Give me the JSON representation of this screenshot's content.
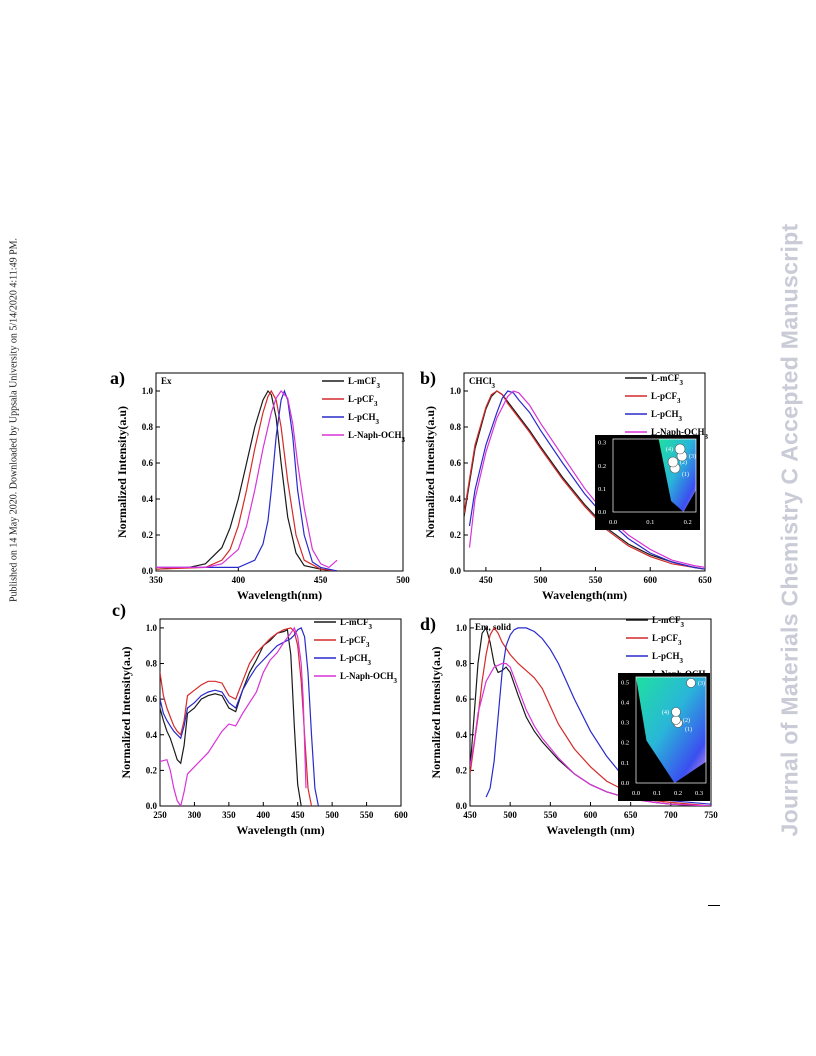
{
  "sidebar_left": "Published on 14 May 2020. Downloaded by Uppsala University on 5/14/2020 4:11:49 PM.",
  "sidebar_right": "Journal of Materials Chemistry C Accepted Manuscript",
  "colors": {
    "L-mCF3": "#1a1a1a",
    "L-pCF3": "#d42a2a",
    "L-pCH3": "#2a2acc",
    "L-Naph-OCH3": "#d833d8"
  },
  "chart_data": [
    {
      "panel": "a)",
      "type": "line",
      "annotation": "Ex",
      "xlabel": "Wavelength(nm)",
      "ylabel": "Normalized Intensity(a.u)",
      "xlim": [
        350,
        500
      ],
      "ylim": [
        0,
        1.1
      ],
      "xticks": [
        350,
        400,
        450,
        500
      ],
      "yticks": [
        0.0,
        0.2,
        0.4,
        0.6,
        0.8,
        1.0
      ],
      "legend": [
        [
          "L-mCF",
          "3"
        ],
        [
          "L-pCF",
          "3"
        ],
        [
          "L-pCH",
          "3"
        ],
        [
          "L-Naph-OCH",
          "3"
        ]
      ],
      "legend_position": "top-right",
      "series": [
        {
          "name": "L-mCF3",
          "x": [
            350,
            370,
            380,
            390,
            395,
            400,
            405,
            410,
            415,
            418,
            420,
            423,
            426,
            430,
            435,
            440,
            450,
            460
          ],
          "y": [
            0.01,
            0.02,
            0.04,
            0.13,
            0.24,
            0.4,
            0.6,
            0.8,
            0.95,
            1.0,
            0.98,
            0.85,
            0.6,
            0.3,
            0.1,
            0.03,
            0.01,
            0.0
          ]
        },
        {
          "name": "L-pCF3",
          "x": [
            350,
            380,
            390,
            395,
            400,
            405,
            410,
            415,
            418,
            420,
            423,
            426,
            430,
            435,
            440,
            450,
            460
          ],
          "y": [
            0.01,
            0.02,
            0.06,
            0.12,
            0.25,
            0.45,
            0.68,
            0.88,
            0.97,
            1.0,
            0.95,
            0.8,
            0.5,
            0.2,
            0.06,
            0.01,
            0.0
          ]
        },
        {
          "name": "L-pCH3",
          "x": [
            350,
            380,
            400,
            410,
            415,
            418,
            420,
            423,
            426,
            428,
            430,
            433,
            436,
            440,
            445,
            450,
            460
          ],
          "y": [
            0.02,
            0.02,
            0.02,
            0.06,
            0.15,
            0.28,
            0.45,
            0.75,
            0.95,
            1.0,
            0.95,
            0.75,
            0.45,
            0.2,
            0.05,
            0.02,
            0.0
          ]
        },
        {
          "name": "L-Naph-OCH3",
          "x": [
            350,
            380,
            390,
            400,
            405,
            410,
            415,
            420,
            423,
            426,
            430,
            433,
            436,
            440,
            445,
            450,
            455,
            460
          ],
          "y": [
            0.02,
            0.02,
            0.04,
            0.12,
            0.25,
            0.45,
            0.68,
            0.88,
            0.96,
            1.0,
            0.96,
            0.82,
            0.6,
            0.35,
            0.12,
            0.04,
            0.02,
            0.06
          ]
        }
      ]
    },
    {
      "panel": "b)",
      "type": "line",
      "annotation": "CHCl",
      "annotation_sub": "3",
      "xlabel": "Wavelength(nm)",
      "ylabel": "Normalized Intensity(a.u)",
      "xlim": [
        430,
        650
      ],
      "ylim": [
        0,
        1.1
      ],
      "xticks": [
        450,
        500,
        550,
        600,
        650
      ],
      "yticks": [
        0.0,
        0.2,
        0.4,
        0.6,
        0.8,
        1.0
      ],
      "legend": [
        [
          "L-mCF",
          "3"
        ],
        [
          "L-pCF",
          "3"
        ],
        [
          "L-pCH",
          "3"
        ],
        [
          "L-Naph-OCH",
          "3"
        ]
      ],
      "legend_position": "top-right",
      "series": [
        {
          "name": "L-mCF3",
          "x": [
            430,
            440,
            450,
            455,
            460,
            465,
            470,
            480,
            490,
            500,
            520,
            540,
            560,
            580,
            600,
            620,
            640,
            650
          ],
          "y": [
            0.3,
            0.68,
            0.9,
            0.97,
            1.0,
            0.98,
            0.94,
            0.86,
            0.78,
            0.69,
            0.52,
            0.37,
            0.24,
            0.15,
            0.09,
            0.05,
            0.02,
            0.01
          ]
        },
        {
          "name": "L-pCF3",
          "x": [
            430,
            440,
            450,
            455,
            460,
            465,
            470,
            480,
            490,
            500,
            520,
            540,
            560,
            580,
            600,
            620,
            640,
            650
          ],
          "y": [
            0.32,
            0.7,
            0.91,
            0.98,
            1.0,
            0.98,
            0.93,
            0.85,
            0.77,
            0.68,
            0.51,
            0.36,
            0.23,
            0.14,
            0.08,
            0.04,
            0.02,
            0.01
          ]
        },
        {
          "name": "L-pCH3",
          "x": [
            435,
            440,
            450,
            460,
            465,
            470,
            475,
            480,
            490,
            500,
            520,
            540,
            560,
            580,
            600,
            620,
            640,
            650
          ],
          "y": [
            0.25,
            0.45,
            0.7,
            0.88,
            0.96,
            1.0,
            0.99,
            0.95,
            0.88,
            0.78,
            0.6,
            0.43,
            0.29,
            0.18,
            0.1,
            0.05,
            0.02,
            0.01
          ]
        },
        {
          "name": "L-Naph-OCH3",
          "x": [
            435,
            440,
            450,
            460,
            470,
            475,
            480,
            490,
            500,
            520,
            540,
            560,
            580,
            600,
            620,
            640,
            650
          ],
          "y": [
            0.13,
            0.4,
            0.66,
            0.85,
            0.97,
            1.0,
            0.99,
            0.92,
            0.82,
            0.64,
            0.46,
            0.31,
            0.2,
            0.12,
            0.06,
            0.03,
            0.02
          ]
        }
      ],
      "inset": {
        "xticks": [
          0.0,
          0.1,
          0.2
        ],
        "yticks": [
          0.0,
          0.1,
          0.2,
          0.3
        ],
        "points": [
          {
            "label": "(1)"
          },
          {
            "label": "(2)"
          },
          {
            "label": "(3)"
          },
          {
            "label": "(4)"
          }
        ]
      }
    },
    {
      "panel": "c)",
      "type": "line",
      "annotation": "",
      "xlabel": "Wavelength (nm)",
      "ylabel": "Normalized Intensity(a.u)",
      "xlim": [
        250,
        600
      ],
      "ylim": [
        0,
        1.05
      ],
      "xticks": [
        250,
        300,
        350,
        400,
        450,
        500,
        550,
        600
      ],
      "yticks": [
        0.0,
        0.2,
        0.4,
        0.6,
        0.8,
        1.0
      ],
      "legend": [
        [
          "L-mCF",
          "3"
        ],
        [
          "L-pCF",
          "3"
        ],
        [
          "L-pCH",
          "3"
        ],
        [
          "L-Naph-OCH",
          "3"
        ]
      ],
      "legend_position": "top-right",
      "series": [
        {
          "name": "L-mCF3",
          "x": [
            250,
            255,
            260,
            265,
            270,
            275,
            280,
            285,
            290,
            300,
            310,
            320,
            330,
            340,
            350,
            360,
            370,
            380,
            390,
            400,
            410,
            420,
            430,
            435,
            440,
            445,
            450,
            455
          ],
          "y": [
            0.55,
            0.48,
            0.42,
            0.38,
            0.32,
            0.26,
            0.24,
            0.34,
            0.52,
            0.55,
            0.6,
            0.62,
            0.63,
            0.62,
            0.55,
            0.53,
            0.65,
            0.75,
            0.82,
            0.9,
            0.93,
            0.97,
            0.98,
            0.99,
            0.85,
            0.45,
            0.12,
            0.0
          ]
        },
        {
          "name": "L-pCF3",
          "x": [
            250,
            255,
            260,
            265,
            270,
            275,
            280,
            285,
            290,
            300,
            310,
            320,
            330,
            340,
            350,
            360,
            370,
            380,
            390,
            400,
            410,
            420,
            430,
            440,
            445,
            450,
            455,
            460,
            465,
            470
          ],
          "y": [
            0.75,
            0.62,
            0.55,
            0.5,
            0.45,
            0.42,
            0.4,
            0.48,
            0.62,
            0.65,
            0.68,
            0.7,
            0.7,
            0.69,
            0.62,
            0.6,
            0.7,
            0.8,
            0.86,
            0.9,
            0.94,
            0.97,
            0.99,
            1.0,
            0.98,
            0.9,
            0.7,
            0.4,
            0.1,
            0.0
          ]
        },
        {
          "name": "L-pCH3",
          "x": [
            250,
            255,
            260,
            265,
            270,
            275,
            280,
            285,
            290,
            300,
            310,
            320,
            330,
            340,
            350,
            360,
            370,
            380,
            390,
            400,
            410,
            420,
            430,
            440,
            445,
            450,
            455,
            460,
            465,
            470,
            475,
            480
          ],
          "y": [
            0.6,
            0.52,
            0.48,
            0.45,
            0.42,
            0.4,
            0.38,
            0.45,
            0.55,
            0.58,
            0.62,
            0.64,
            0.65,
            0.64,
            0.58,
            0.55,
            0.65,
            0.72,
            0.78,
            0.82,
            0.86,
            0.9,
            0.92,
            0.94,
            0.96,
            0.99,
            1.0,
            0.95,
            0.75,
            0.4,
            0.1,
            0.0
          ]
        },
        {
          "name": "L-Naph-OCH3",
          "x": [
            250,
            260,
            265,
            270,
            275,
            280,
            285,
            290,
            300,
            310,
            320,
            330,
            340,
            350,
            360,
            370,
            380,
            390,
            400,
            410,
            420,
            430,
            440,
            445,
            450,
            455,
            458,
            460,
            462
          ],
          "y": [
            0.25,
            0.26,
            0.2,
            0.1,
            0.03,
            0.0,
            0.08,
            0.18,
            0.22,
            0.26,
            0.3,
            0.36,
            0.42,
            0.46,
            0.45,
            0.52,
            0.58,
            0.64,
            0.75,
            0.82,
            0.86,
            0.92,
            0.97,
            1.0,
            0.95,
            0.8,
            0.6,
            0.35,
            0.1
          ]
        }
      ]
    },
    {
      "panel": "d)",
      "type": "line",
      "annotation": "Em, solid",
      "xlabel": "Wavelength (nm)",
      "ylabel": "Normalized Intensity(a.u)",
      "xlim": [
        450,
        750
      ],
      "ylim": [
        0,
        1.05
      ],
      "xticks": [
        450,
        500,
        550,
        600,
        650,
        700,
        750
      ],
      "yticks": [
        0.0,
        0.2,
        0.4,
        0.6,
        0.8,
        1.0
      ],
      "legend": [
        [
          "L-mCF",
          "3"
        ],
        [
          "L-pCF",
          "3"
        ],
        [
          "L-pCH",
          "3"
        ],
        [
          "L-Naph-OCH",
          "3"
        ]
      ],
      "legend_position": "top-right",
      "series": [
        {
          "name": "L-mCF3",
          "x": [
            450,
            455,
            460,
            465,
            470,
            475,
            480,
            485,
            490,
            495,
            500,
            510,
            520,
            530,
            540,
            560,
            580,
            600,
            620,
            650,
            680,
            700,
            750
          ],
          "y": [
            0.2,
            0.5,
            0.8,
            0.97,
            1.0,
            0.92,
            0.8,
            0.75,
            0.76,
            0.78,
            0.75,
            0.62,
            0.5,
            0.42,
            0.36,
            0.26,
            0.18,
            0.12,
            0.08,
            0.04,
            0.02,
            0.01,
            0.0
          ]
        },
        {
          "name": "L-pCF3",
          "x": [
            450,
            460,
            465,
            470,
            475,
            480,
            485,
            490,
            500,
            510,
            520,
            530,
            540,
            550,
            560,
            580,
            600,
            620,
            650,
            680,
            700,
            750
          ],
          "y": [
            0.18,
            0.5,
            0.7,
            0.85,
            0.96,
            1.0,
            0.97,
            0.92,
            0.85,
            0.8,
            0.76,
            0.72,
            0.66,
            0.56,
            0.46,
            0.32,
            0.22,
            0.14,
            0.07,
            0.03,
            0.02,
            0.0
          ]
        },
        {
          "name": "L-pCH3",
          "x": [
            470,
            475,
            480,
            485,
            490,
            495,
            500,
            505,
            510,
            520,
            530,
            540,
            550,
            560,
            570,
            580,
            600,
            620,
            640,
            660,
            680,
            700,
            750
          ],
          "y": [
            0.05,
            0.1,
            0.25,
            0.5,
            0.75,
            0.9,
            0.96,
            0.99,
            1.0,
            1.0,
            0.98,
            0.94,
            0.88,
            0.8,
            0.7,
            0.6,
            0.42,
            0.28,
            0.17,
            0.1,
            0.06,
            0.03,
            0.01
          ]
        },
        {
          "name": "L-Naph-OCH3",
          "x": [
            450,
            455,
            460,
            470,
            480,
            490,
            495,
            500,
            510,
            520,
            530,
            540,
            560,
            580,
            600,
            620,
            650,
            680,
            700,
            750
          ],
          "y": [
            0.22,
            0.35,
            0.52,
            0.7,
            0.78,
            0.8,
            0.8,
            0.78,
            0.66,
            0.54,
            0.45,
            0.38,
            0.27,
            0.18,
            0.12,
            0.08,
            0.04,
            0.02,
            0.01,
            0.0
          ]
        }
      ],
      "inset": {
        "xticks": [
          0.0,
          0.1,
          0.2,
          0.3
        ],
        "yticks": [
          0.0,
          0.1,
          0.2,
          0.3,
          0.4,
          0.5
        ],
        "points": [
          {
            "label": "(1)"
          },
          {
            "label": "(2)"
          },
          {
            "label": "(3)"
          },
          {
            "label": "(4)"
          }
        ]
      }
    }
  ]
}
